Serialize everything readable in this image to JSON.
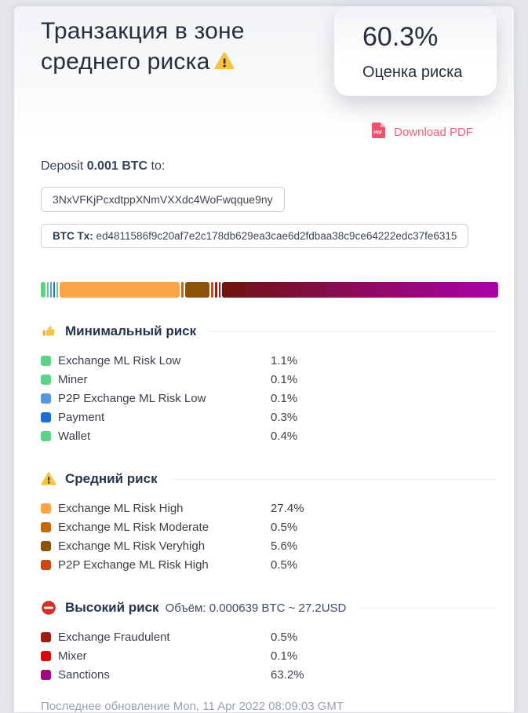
{
  "header": {
    "title_line1": "Транзакция в зоне",
    "title_line2": "среднего риска",
    "title_icon": "warning-triangle-icon"
  },
  "risk_score": {
    "value": "60.3%",
    "label": "Оценка риска"
  },
  "download_pdf": {
    "label": "Download PDF",
    "icon": "pdf-file-icon",
    "color": "#ee5c7a"
  },
  "deposit": {
    "prefix": "Deposit ",
    "amount": "0.001 BTC",
    "suffix": " to:",
    "address": "3NxVFKjPcxdtppXNmVXXdc4WoFwqque9ny",
    "tx_label": "BTC Tx: ",
    "tx_hash": "ed4811586f9c20af7e2c178db629ea3cae6d2fdbaa38c9ce64222edc37fe6315"
  },
  "sections": [
    {
      "icon": "thumbs-up-icon",
      "title": "Минимальный риск",
      "items": [
        {
          "label": "Exchange ML Risk Low",
          "value": "1.1%",
          "percent": 1.1,
          "color": "#5dd287"
        },
        {
          "label": "Miner",
          "value": "0.1%",
          "percent": 0.1,
          "color": "#5dd287"
        },
        {
          "label": "P2P Exchange ML Risk Low",
          "value": "0.1%",
          "percent": 0.1,
          "color": "#5795dd"
        },
        {
          "label": "Payment",
          "value": "0.3%",
          "percent": 0.3,
          "color": "#1e6fd0"
        },
        {
          "label": "Wallet",
          "value": "0.4%",
          "percent": 0.4,
          "color": "#5dd287"
        }
      ]
    },
    {
      "icon": "warning-triangle-icon",
      "title": "Средний риск",
      "items": [
        {
          "label": "Exchange ML Risk High",
          "value": "27.4%",
          "percent": 27.4,
          "color": "#f9a44a"
        },
        {
          "label": "Exchange ML Risk Moderate",
          "value": "0.5%",
          "percent": 0.5,
          "color": "#c2690b"
        },
        {
          "label": "Exchange ML Risk Veryhigh",
          "value": "5.6%",
          "percent": 5.6,
          "color": "#8c5309"
        },
        {
          "label": "P2P Exchange ML Risk High",
          "value": "0.5%",
          "percent": 0.5,
          "color": "#c94a12"
        }
      ]
    },
    {
      "icon": "no-entry-icon",
      "title": "Высокий риск",
      "volume_note": "Объём: 0.000639 BTC ~ 27.2USD",
      "items": [
        {
          "label": "Exchange Fraudulent",
          "value": "0.5%",
          "percent": 0.5,
          "color": "#9c2011"
        },
        {
          "label": "Mixer",
          "value": "0.1%",
          "percent": 0.1,
          "color": "#d60c0c"
        },
        {
          "label": "Sanctions",
          "value": "63.2%",
          "percent": 63.2,
          "color": "#951356",
          "color2": "#a705a7",
          "bar_from": "#6f1310",
          "bar_to": "#aa02aa"
        }
      ]
    }
  ],
  "footer": {
    "last_update": "Последнее обновление Mon, 11 Apr 2022 08:09:03 GMT"
  }
}
